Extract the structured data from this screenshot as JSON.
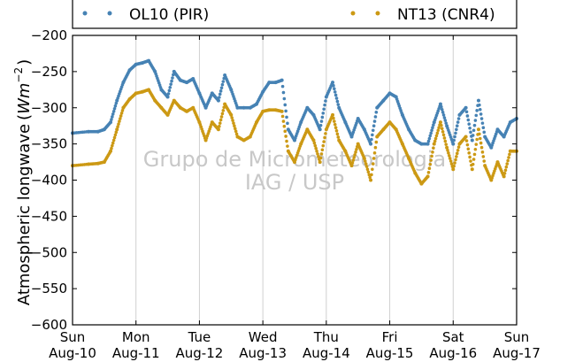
{
  "chart_data": {
    "type": "scatter",
    "ylabel": "Atmospheric longwave",
    "ylabel_unit": "Wm",
    "ylabel_exponent": "−2",
    "ylim": [
      -600,
      -200
    ],
    "yticks": [
      -200,
      -250,
      -300,
      -350,
      -400,
      -450,
      -500,
      -550,
      -600
    ],
    "ytick_labels": [
      "−200",
      "−250",
      "−300",
      "−350",
      "−400",
      "−450",
      "−500",
      "−550",
      "−600"
    ],
    "x_range_days": [
      "2015-08-10",
      "2015-08-17"
    ],
    "xticks": [
      {
        "day": "Sun",
        "date": "Aug-10"
      },
      {
        "day": "Mon",
        "date": "Aug-11"
      },
      {
        "day": "Tue",
        "date": "Aug-12"
      },
      {
        "day": "Wed",
        "date": "Aug-13"
      },
      {
        "day": "Thu",
        "date": "Aug-14"
      },
      {
        "day": "Fri",
        "date": "Aug-15"
      },
      {
        "day": "Sat",
        "date": "Aug-16"
      },
      {
        "day": "Sun",
        "date": "Aug-17"
      }
    ],
    "grid": "vertical",
    "legend_position": "top",
    "watermark": [
      "Grupo de Micrometeorologia",
      "IAG / USP"
    ],
    "series": [
      {
        "name": "OL10 (PIR)",
        "color": "#4682b4",
        "x": [
          0,
          0.25,
          0.4,
          0.5,
          0.6,
          0.7,
          0.8,
          0.9,
          1.0,
          1.1,
          1.2,
          1.3,
          1.4,
          1.5,
          1.6,
          1.7,
          1.8,
          1.9,
          2.0,
          2.1,
          2.2,
          2.3,
          2.4,
          2.5,
          2.6,
          2.7,
          2.8,
          2.9,
          3.0,
          3.1,
          3.2,
          3.3,
          3.4,
          3.5,
          3.6,
          3.7,
          3.8,
          3.9,
          4.0,
          4.1,
          4.2,
          4.3,
          4.4,
          4.5,
          4.6,
          4.7,
          4.8,
          4.9,
          5.0,
          5.1,
          5.2,
          5.3,
          5.4,
          5.5,
          5.6,
          5.7,
          5.8,
          5.9,
          6.0,
          6.1,
          6.2,
          6.3,
          6.4,
          6.5,
          6.6,
          6.7,
          6.8,
          6.9,
          7.0
        ],
        "y": [
          -335,
          -333,
          -333,
          -330,
          -320,
          -290,
          -265,
          -248,
          -240,
          -238,
          -235,
          -250,
          -275,
          -285,
          -250,
          -262,
          -265,
          -260,
          -280,
          -300,
          -280,
          -290,
          -255,
          -275,
          -300,
          -300,
          -300,
          -295,
          -278,
          -265,
          -265,
          -262,
          -330,
          -345,
          -320,
          -300,
          -310,
          -330,
          -285,
          -265,
          -300,
          -320,
          -340,
          -315,
          -330,
          -350,
          -300,
          -290,
          -280,
          -285,
          -310,
          -330,
          -345,
          -350,
          -350,
          -320,
          -295,
          -325,
          -350,
          -310,
          -300,
          -345,
          -290,
          -340,
          -355,
          -330,
          -340,
          -320,
          -315
        ]
      },
      {
        "name": "NT13 (CNR4)",
        "color": "#cc9914",
        "x": [
          0,
          0.25,
          0.4,
          0.5,
          0.6,
          0.7,
          0.8,
          0.9,
          1.0,
          1.1,
          1.2,
          1.3,
          1.4,
          1.5,
          1.6,
          1.7,
          1.8,
          1.9,
          2.0,
          2.1,
          2.2,
          2.3,
          2.4,
          2.5,
          2.6,
          2.7,
          2.8,
          2.9,
          3.0,
          3.1,
          3.2,
          3.3,
          3.4,
          3.5,
          3.6,
          3.7,
          3.8,
          3.9,
          4.0,
          4.1,
          4.2,
          4.3,
          4.4,
          4.5,
          4.6,
          4.7,
          4.8,
          4.9,
          5.0,
          5.1,
          5.2,
          5.3,
          5.4,
          5.5,
          5.6,
          5.7,
          5.8,
          5.9,
          6.0,
          6.1,
          6.2,
          6.3,
          6.4,
          6.5,
          6.6,
          6.7,
          6.8,
          6.9,
          7.0
        ],
        "y": [
          -380,
          -378,
          -377,
          -375,
          -360,
          -330,
          -300,
          -288,
          -280,
          -278,
          -275,
          -290,
          -300,
          -310,
          -290,
          -300,
          -305,
          -300,
          -320,
          -345,
          -320,
          -330,
          -295,
          -310,
          -340,
          -345,
          -340,
          -320,
          -305,
          -303,
          -303,
          -305,
          -360,
          -375,
          -350,
          -330,
          -345,
          -375,
          -330,
          -310,
          -345,
          -360,
          -380,
          -350,
          -370,
          -400,
          -340,
          -330,
          -320,
          -330,
          -350,
          -370,
          -390,
          -405,
          -395,
          -350,
          -320,
          -355,
          -385,
          -350,
          -340,
          -385,
          -330,
          -380,
          -400,
          -375,
          -395,
          -360,
          -360
        ]
      }
    ]
  }
}
